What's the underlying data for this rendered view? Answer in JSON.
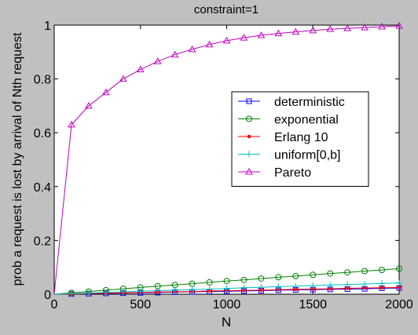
{
  "chart_data": {
    "type": "line",
    "title": "constraint=1",
    "xlabel": "N",
    "ylabel": "prob a request is lost by arrival of Nth request",
    "xlim": [
      0,
      2000
    ],
    "ylim": [
      0,
      1
    ],
    "xticks": [
      0,
      500,
      1000,
      1500,
      2000
    ],
    "xtick_labels": [
      "0",
      "500",
      "1000",
      "1500",
      "2000"
    ],
    "yticks": [
      0,
      0.2,
      0.4,
      0.6,
      0.8,
      1
    ],
    "ytick_labels": [
      "0",
      "0.2",
      "0.4",
      "0.6",
      "0.8",
      "1"
    ],
    "grid": false,
    "legend_position": "right-center",
    "x": [
      0,
      100,
      200,
      300,
      400,
      500,
      600,
      700,
      800,
      900,
      1000,
      1100,
      1200,
      1300,
      1400,
      1500,
      1600,
      1700,
      1800,
      1900,
      2000
    ],
    "series": [
      {
        "name": "deterministic",
        "color": "#0000ff",
        "marker": "square",
        "values": [
          0,
          0.001,
          0.002,
          0.003,
          0.004,
          0.005,
          0.006,
          0.008,
          0.009,
          0.01,
          0.011,
          0.012,
          0.013,
          0.015,
          0.016,
          0.017,
          0.018,
          0.019,
          0.02,
          0.022,
          0.023
        ]
      },
      {
        "name": "exponential",
        "color": "#008000",
        "marker": "circle",
        "values": [
          0,
          0.005,
          0.01,
          0.015,
          0.02,
          0.025,
          0.03,
          0.034,
          0.039,
          0.044,
          0.049,
          0.053,
          0.058,
          0.063,
          0.067,
          0.072,
          0.077,
          0.081,
          0.086,
          0.09,
          0.095
        ]
      },
      {
        "name": "Erlang 10",
        "color": "#ff0000",
        "marker": "dot",
        "values": [
          0,
          0.001,
          0.003,
          0.004,
          0.005,
          0.006,
          0.008,
          0.009,
          0.01,
          0.012,
          0.013,
          0.014,
          0.015,
          0.017,
          0.018,
          0.019,
          0.02,
          0.022,
          0.023,
          0.024,
          0.025
        ]
      },
      {
        "name": "uniform[0,b]",
        "color": "#00bfbf",
        "marker": "plus",
        "values": [
          0,
          0.002,
          0.004,
          0.007,
          0.009,
          0.011,
          0.013,
          0.015,
          0.017,
          0.019,
          0.021,
          0.024,
          0.026,
          0.028,
          0.03,
          0.032,
          0.034,
          0.036,
          0.038,
          0.04,
          0.042
        ]
      },
      {
        "name": "Pareto",
        "color": "#bf00bf",
        "marker": "triangle",
        "values": [
          0,
          0.63,
          0.7,
          0.75,
          0.8,
          0.835,
          0.865,
          0.89,
          0.91,
          0.928,
          0.942,
          0.953,
          0.962,
          0.969,
          0.975,
          0.98,
          0.985,
          0.988,
          0.991,
          0.994,
          0.997
        ]
      }
    ]
  }
}
